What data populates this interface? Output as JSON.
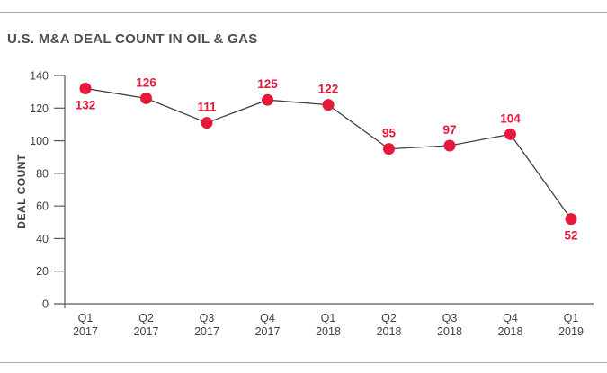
{
  "header": {
    "title": "U.S. M&A DEAL COUNT IN OIL & GAS"
  },
  "chart_data": {
    "type": "line",
    "title": "U.S. M&A DEAL COUNT IN OIL & GAS",
    "categories": [
      "Q1 2017",
      "Q2 2017",
      "Q3 2017",
      "Q4 2017",
      "Q1 2018",
      "Q2 2018",
      "Q3 2018",
      "Q4 2018",
      "Q1 2019"
    ],
    "values": [
      132,
      126,
      111,
      125,
      122,
      95,
      97,
      104,
      52
    ],
    "data_label_positions": [
      "below",
      "above",
      "above",
      "above",
      "above",
      "above",
      "above",
      "above",
      "below"
    ],
    "xlabel": "",
    "ylabel": "DEAL COUNT",
    "ylim": [
      0,
      140
    ],
    "yticks": [
      0,
      20,
      40,
      60,
      80,
      100,
      120,
      140
    ],
    "grid": false,
    "legend": "none",
    "colors": {
      "point": "#e6193c",
      "data_label": "#e6193c",
      "series_line": "#414042",
      "axis": "#58595b",
      "tick_text": "#414042",
      "title_text": "#4d4d4d",
      "frame_line": "#a7a9ac"
    }
  }
}
